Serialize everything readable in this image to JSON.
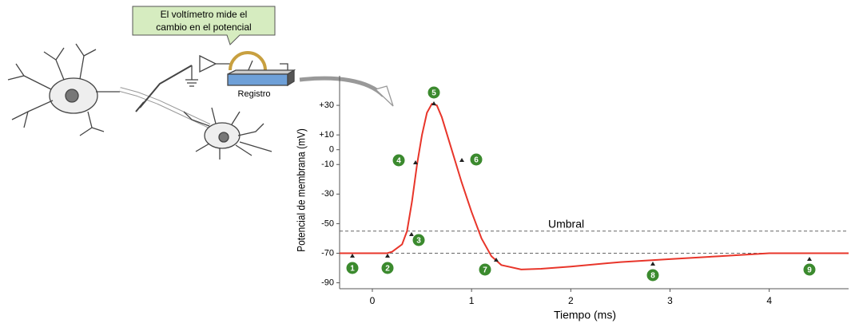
{
  "callout": [
    "El voltímetro mide el",
    "cambio en el potencial"
  ],
  "device_label": "Registro",
  "chart_data": {
    "type": "line",
    "xlabel": "Tiempo (ms)",
    "ylabel": "Potencial de membrana (mV)",
    "xlim": [
      -0.33,
      4.8
    ],
    "ylim": [
      -94,
      50
    ],
    "xticks": [
      0,
      1,
      2,
      3,
      4
    ],
    "yticks": [
      {
        "value": 30,
        "label": "+30"
      },
      {
        "value": 10,
        "label": "+10"
      },
      0,
      -10,
      -30,
      -50,
      -70,
      -90
    ],
    "x": [
      -0.33,
      0.15,
      0.2,
      0.3,
      0.35,
      0.4,
      0.45,
      0.5,
      0.55,
      0.6,
      0.65,
      0.7,
      0.8,
      0.9,
      1.0,
      1.1,
      1.2,
      1.3,
      1.5,
      1.7,
      2,
      2.5,
      3,
      3.5,
      4,
      4.8
    ],
    "series": [
      {
        "color": "#e8352a",
        "values": [
          -70,
          -70,
          -69,
          -64,
          -55,
          -35,
          -10,
          10,
          25,
          31,
          30,
          22,
          0,
          -22,
          -42,
          -60,
          -72,
          -78,
          -81,
          -80.5,
          -79,
          -76,
          -74,
          -72,
          -70,
          -70
        ]
      }
    ],
    "reference_lines": [
      {
        "value": -55,
        "label": "Umbral"
      },
      {
        "value": -70
      }
    ],
    "markers": [
      "1",
      "2",
      "3",
      "4",
      "5",
      "6",
      "7",
      "8",
      "9"
    ]
  }
}
